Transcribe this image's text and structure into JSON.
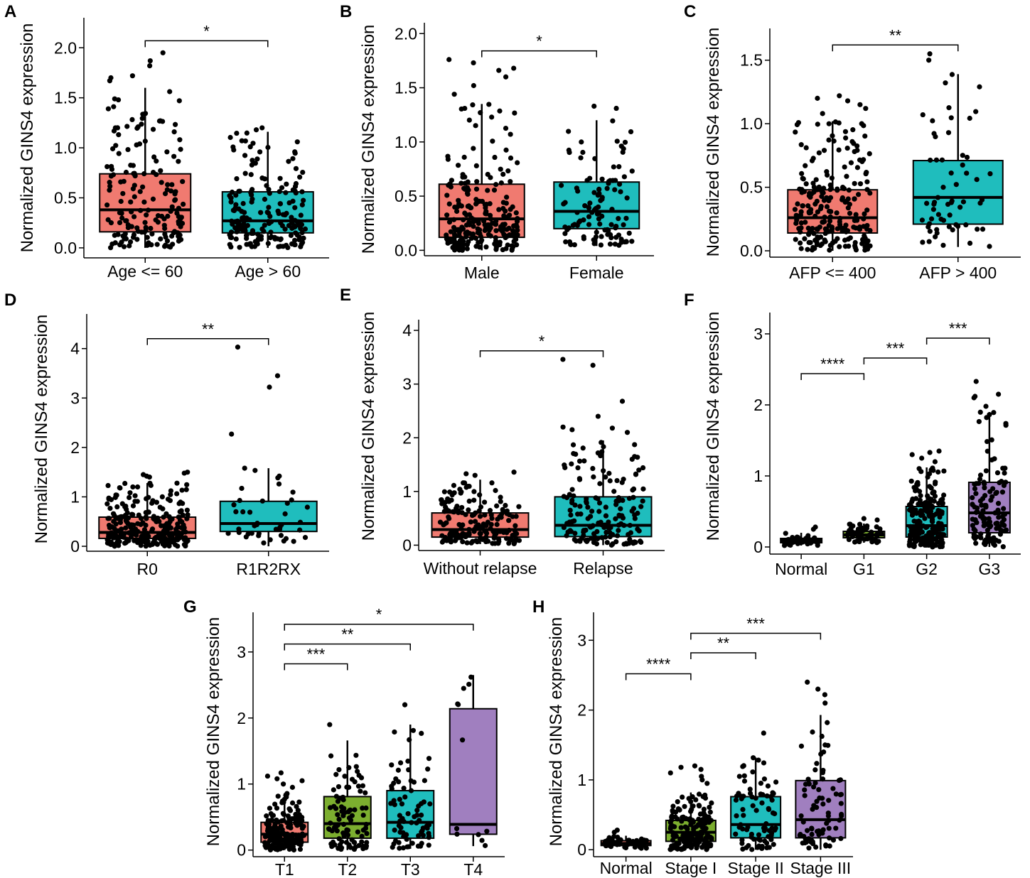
{
  "figure": {
    "ylabel": "Normalized GINS4 expression"
  },
  "colors": {
    "red": "#f07a70",
    "teal": "#1fbdbd",
    "green": "#7cae2f",
    "purple": "#a07fbf",
    "gray": "#b3b3b3"
  },
  "chart_data": [
    {
      "letter": "A",
      "type": "box",
      "ylabel": "Normalized GINS4 expression",
      "ylim": [
        -0.1,
        2.3
      ],
      "yticks": [
        0.0,
        0.5,
        1.0,
        1.5,
        2.0
      ],
      "tick_decimals": 1,
      "categories": [
        "Age <= 60",
        "Age > 60"
      ],
      "boxes": [
        {
          "q1": 0.16,
          "median": 0.38,
          "q3": 0.74,
          "whisk_lo": 0.0,
          "whisk_hi": 1.6,
          "color": "red",
          "n": 170,
          "outliers": [
            1.95,
            1.87,
            1.82,
            1.72,
            1.7,
            1.67
          ]
        },
        {
          "q1": 0.15,
          "median": 0.27,
          "q3": 0.56,
          "whisk_lo": 0.0,
          "whisk_hi": 1.16,
          "color": "teal",
          "n": 190,
          "outliers": [
            1.2,
            1.18
          ]
        }
      ],
      "comparisons": [
        {
          "from": 0,
          "to": 1,
          "y": 2.07,
          "label": "*"
        }
      ]
    },
    {
      "letter": "B",
      "type": "box",
      "ylabel": "Normalized GINS4 expression",
      "ylim": [
        -0.05,
        2.1
      ],
      "yticks": [
        0.0,
        0.5,
        1.0,
        1.5,
        2.0
      ],
      "tick_decimals": 1,
      "categories": [
        "Male",
        "Female"
      ],
      "boxes": [
        {
          "q1": 0.12,
          "median": 0.29,
          "q3": 0.61,
          "whisk_lo": 0.0,
          "whisk_hi": 1.35,
          "color": "red",
          "n": 230,
          "outliers": [
            1.76,
            1.73,
            1.68,
            1.66,
            1.6,
            1.52,
            1.44
          ]
        },
        {
          "q1": 0.2,
          "median": 0.36,
          "q3": 0.63,
          "whisk_lo": 0.04,
          "whisk_hi": 1.2,
          "color": "teal",
          "n": 110,
          "outliers": [
            1.33,
            1.31
          ]
        }
      ],
      "comparisons": [
        {
          "from": 0,
          "to": 1,
          "y": 1.84,
          "label": "*"
        }
      ]
    },
    {
      "letter": "C",
      "type": "box",
      "ylabel": "Normalized GINS4 expression",
      "ylim": [
        -0.05,
        1.75
      ],
      "yticks": [
        0.0,
        0.5,
        1.0,
        1.5
      ],
      "tick_decimals": 1,
      "categories": [
        "AFP <= 400",
        "AFP > 400"
      ],
      "boxes": [
        {
          "q1": 0.14,
          "median": 0.26,
          "q3": 0.48,
          "whisk_lo": 0.0,
          "whisk_hi": 1.02,
          "color": "red",
          "n": 220,
          "outliers": [
            1.22,
            1.2,
            1.18,
            1.15,
            1.12,
            1.08
          ]
        },
        {
          "q1": 0.21,
          "median": 0.42,
          "q3": 0.71,
          "whisk_lo": 0.03,
          "whisk_hi": 1.39,
          "color": "teal",
          "n": 60,
          "outliers": [
            1.55,
            1.5
          ]
        }
      ],
      "comparisons": [
        {
          "from": 0,
          "to": 1,
          "y": 1.62,
          "label": "**"
        }
      ]
    },
    {
      "letter": "D",
      "type": "box",
      "ylabel": "Normalized GINS4 expression",
      "ylim": [
        -0.1,
        4.7
      ],
      "yticks": [
        0,
        1,
        2,
        3,
        4
      ],
      "tick_decimals": 0,
      "categories": [
        "R0",
        "R1R2RX"
      ],
      "boxes": [
        {
          "q1": 0.16,
          "median": 0.28,
          "q3": 0.59,
          "whisk_lo": 0.0,
          "whisk_hi": 1.28,
          "color": "red",
          "n": 280,
          "outliers": [
            1.5,
            1.48,
            1.45,
            1.42,
            1.4
          ]
        },
        {
          "q1": 0.3,
          "median": 0.46,
          "q3": 0.91,
          "whisk_lo": 0.0,
          "whisk_hi": 1.58,
          "color": "teal",
          "n": 40,
          "outliers": [
            4.03,
            3.45,
            3.22,
            2.27,
            1.58
          ]
        }
      ],
      "comparisons": [
        {
          "from": 0,
          "to": 1,
          "y": 4.2,
          "label": "**"
        }
      ]
    },
    {
      "letter": "E",
      "type": "box",
      "ylabel": "Normalized GINS4 expression",
      "ylim": [
        -0.1,
        4.2
      ],
      "yticks": [
        0,
        1,
        2,
        3,
        4
      ],
      "tick_decimals": 0,
      "categories": [
        "Without relapse",
        "Relapse"
      ],
      "boxes": [
        {
          "q1": 0.15,
          "median": 0.29,
          "q3": 0.6,
          "whisk_lo": 0.02,
          "whisk_hi": 1.22,
          "color": "red",
          "n": 180,
          "outliers": [
            1.36,
            1.33,
            1.3
          ]
        },
        {
          "q1": 0.16,
          "median": 0.37,
          "q3": 0.9,
          "whisk_lo": 0.0,
          "whisk_hi": 1.95,
          "color": "teal",
          "n": 160,
          "outliers": [
            3.46,
            3.35,
            2.68,
            2.4,
            2.2,
            2.18,
            2.15,
            2.1
          ]
        }
      ],
      "comparisons": [
        {
          "from": 0,
          "to": 1,
          "y": 3.62,
          "label": "*"
        }
      ]
    },
    {
      "letter": "F",
      "type": "box",
      "ylabel": "Normalized GINS4 expression",
      "ylim": [
        -0.1,
        3.3
      ],
      "yticks": [
        0,
        1,
        2,
        3
      ],
      "tick_decimals": 0,
      "categories": [
        "Normal",
        "G1",
        "G2",
        "G3"
      ],
      "boxes": [
        {
          "q1": 0.06,
          "median": 0.09,
          "q3": 0.12,
          "whisk_lo": 0.02,
          "whisk_hi": 0.2,
          "color": "red",
          "n": 50,
          "outliers": [
            0.28,
            0.25
          ]
        },
        {
          "q1": 0.13,
          "median": 0.17,
          "q3": 0.22,
          "whisk_lo": 0.06,
          "whisk_hi": 0.33,
          "color": "green",
          "n": 50,
          "outliers": [
            0.4,
            0.38
          ]
        },
        {
          "q1": 0.14,
          "median": 0.3,
          "q3": 0.57,
          "whisk_lo": 0.0,
          "whisk_hi": 1.12,
          "color": "teal",
          "n": 200,
          "outliers": [
            1.35,
            1.33,
            1.3,
            1.25,
            1.2
          ]
        },
        {
          "q1": 0.2,
          "median": 0.48,
          "q3": 0.91,
          "whisk_lo": 0.0,
          "whisk_hi": 1.9,
          "color": "purple",
          "n": 120,
          "outliers": [
            2.33,
            2.15,
            2.12,
            2.1,
            1.98
          ]
        }
      ],
      "comparisons": [
        {
          "from": 0,
          "to": 1,
          "y": 2.44,
          "label": "****"
        },
        {
          "from": 1,
          "to": 2,
          "y": 2.66,
          "label": "***"
        },
        {
          "from": 2,
          "to": 3,
          "y": 2.94,
          "label": "***"
        }
      ]
    },
    {
      "letter": "G",
      "type": "box",
      "ylabel": "Normalized GINS4 expression",
      "ylim": [
        -0.1,
        3.6
      ],
      "yticks": [
        0,
        1,
        2,
        3
      ],
      "tick_decimals": 0,
      "categories": [
        "T1",
        "T2",
        "T3",
        "T4"
      ],
      "boxes": [
        {
          "q1": 0.12,
          "median": 0.24,
          "q3": 0.42,
          "whisk_lo": 0.0,
          "whisk_hi": 0.86,
          "color": "red",
          "n": 180,
          "outliers": [
            1.17,
            1.12,
            1.08,
            1.05,
            1.0,
            0.95
          ]
        },
        {
          "q1": 0.18,
          "median": 0.4,
          "q3": 0.81,
          "whisk_lo": 0.0,
          "whisk_hi": 1.66,
          "color": "green",
          "n": 95,
          "outliers": [
            1.9
          ]
        },
        {
          "q1": 0.18,
          "median": 0.42,
          "q3": 0.9,
          "whisk_lo": 0.02,
          "whisk_hi": 1.9,
          "color": "teal",
          "n": 75,
          "outliers": [
            2.2
          ]
        },
        {
          "q1": 0.24,
          "median": 0.39,
          "q3": 2.14,
          "whisk_lo": 0.06,
          "whisk_hi": 2.65,
          "color": "purple",
          "n": 12,
          "outliers": []
        }
      ],
      "comparisons": [
        {
          "from": 0,
          "to": 1,
          "y": 2.82,
          "label": "***"
        },
        {
          "from": 0,
          "to": 2,
          "y": 3.12,
          "label": "**"
        },
        {
          "from": 0,
          "to": 3,
          "y": 3.42,
          "label": "*"
        }
      ]
    },
    {
      "letter": "H",
      "type": "box",
      "ylabel": "Normalized GINS4 expression",
      "ylim": [
        -0.1,
        3.4
      ],
      "yticks": [
        0,
        1,
        2,
        3
      ],
      "tick_decimals": 0,
      "categories": [
        "Normal",
        "Stage I",
        "Stage II",
        "Stage III"
      ],
      "boxes": [
        {
          "q1": 0.06,
          "median": 0.09,
          "q3": 0.13,
          "whisk_lo": 0.02,
          "whisk_hi": 0.2,
          "color": "red",
          "n": 50,
          "outliers": [
            0.28,
            0.25
          ]
        },
        {
          "q1": 0.12,
          "median": 0.25,
          "q3": 0.42,
          "whisk_lo": 0.0,
          "whisk_hi": 0.82,
          "color": "green",
          "n": 170,
          "outliers": [
            1.2,
            1.18,
            1.15,
            1.1,
            1.05,
            1.0,
            0.95
          ]
        },
        {
          "q1": 0.17,
          "median": 0.36,
          "q3": 0.76,
          "whisk_lo": 0.0,
          "whisk_hi": 1.32,
          "color": "teal",
          "n": 80,
          "outliers": [
            1.67
          ]
        },
        {
          "q1": 0.17,
          "median": 0.43,
          "q3": 0.99,
          "whisk_lo": 0.0,
          "whisk_hi": 1.93,
          "color": "purple",
          "n": 80,
          "outliers": [
            2.4,
            2.3,
            2.22,
            2.1
          ]
        }
      ],
      "comparisons": [
        {
          "from": 0,
          "to": 1,
          "y": 2.52,
          "label": "****"
        },
        {
          "from": 1,
          "to": 2,
          "y": 2.82,
          "label": "**"
        },
        {
          "from": 1,
          "to": 3,
          "y": 3.1,
          "label": "***"
        }
      ]
    }
  ]
}
